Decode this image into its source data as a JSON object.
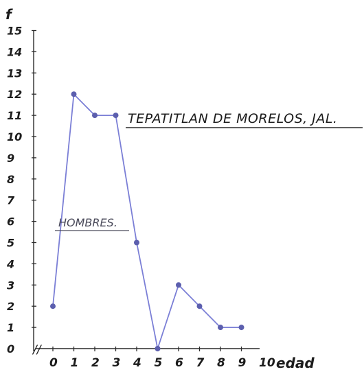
{
  "chart_data": {
    "type": "line",
    "title": "TEPATITLAN DE MORELOS, JAL.",
    "series_label": "HOMBRES.",
    "xlabel": "edad",
    "ylabel": "f",
    "x_axis_break": "//",
    "x_ticks": [
      "0",
      "1",
      "2",
      "3",
      "4",
      "5",
      "6",
      "7",
      "8",
      "9",
      "10"
    ],
    "y_ticks": [
      "0",
      "1",
      "2",
      "3",
      "4",
      "5",
      "6",
      "7",
      "8",
      "9",
      "10",
      "11",
      "12",
      "13",
      "14",
      "15"
    ],
    "xlim": [
      0,
      10
    ],
    "ylim": [
      0,
      15
    ],
    "series": [
      {
        "x": [
          0,
          1,
          2,
          3,
          4,
          5,
          6,
          7,
          8,
          9
        ],
        "values": [
          2,
          12,
          11,
          11,
          5,
          0,
          3,
          2,
          1,
          1
        ],
        "color": "#7b7fd6"
      }
    ],
    "grid": false
  }
}
